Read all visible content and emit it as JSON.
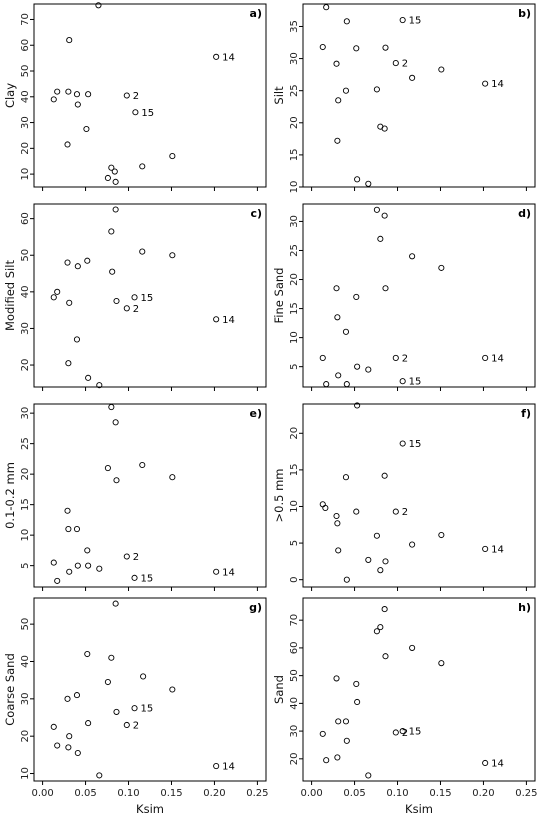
{
  "chart_data": [
    {
      "type": "scatter",
      "panel": "a)",
      "ylabel": "Clay",
      "xlabel": "",
      "ylim": [
        5,
        76
      ],
      "yticks": [
        10,
        20,
        30,
        40,
        50,
        60,
        70
      ],
      "points": [
        {
          "x": 0.013,
          "y": 39
        },
        {
          "x": 0.017,
          "y": 42
        },
        {
          "x": 0.029,
          "y": 21.5
        },
        {
          "x": 0.03,
          "y": 42
        },
        {
          "x": 0.031,
          "y": 62
        },
        {
          "x": 0.04,
          "y": 41
        },
        {
          "x": 0.041,
          "y": 37
        },
        {
          "x": 0.051,
          "y": 27.5
        },
        {
          "x": 0.053,
          "y": 41
        },
        {
          "x": 0.065,
          "y": 75.5
        },
        {
          "x": 0.076,
          "y": 8.5
        },
        {
          "x": 0.08,
          "y": 12.5
        },
        {
          "x": 0.084,
          "y": 11
        },
        {
          "x": 0.085,
          "y": 7
        },
        {
          "x": 0.098,
          "y": 40.5
        },
        {
          "x": 0.108,
          "y": 34
        },
        {
          "x": 0.116,
          "y": 13
        },
        {
          "x": 0.151,
          "y": 17
        },
        {
          "x": 0.202,
          "y": 55.5
        }
      ],
      "annotations": [
        {
          "text": "2",
          "x": 0.098,
          "y": 40.5
        },
        {
          "text": "15",
          "x": 0.108,
          "y": 34
        },
        {
          "text": "14",
          "x": 0.202,
          "y": 55.5
        }
      ]
    },
    {
      "type": "scatter",
      "panel": "b)",
      "ylabel": "Silt",
      "xlabel": "",
      "ylim": [
        10,
        38.5
      ],
      "yticks": [
        10,
        15,
        20,
        25,
        30,
        35
      ],
      "points": [
        {
          "x": 0.013,
          "y": 31.8
        },
        {
          "x": 0.017,
          "y": 38
        },
        {
          "x": 0.029,
          "y": 29.2
        },
        {
          "x": 0.03,
          "y": 17.2
        },
        {
          "x": 0.031,
          "y": 23.5
        },
        {
          "x": 0.04,
          "y": 25
        },
        {
          "x": 0.041,
          "y": 35.8
        },
        {
          "x": 0.052,
          "y": 31.6
        },
        {
          "x": 0.053,
          "y": 11.2
        },
        {
          "x": 0.066,
          "y": 10.5
        },
        {
          "x": 0.076,
          "y": 25.2
        },
        {
          "x": 0.08,
          "y": 19.4
        },
        {
          "x": 0.085,
          "y": 19.1
        },
        {
          "x": 0.086,
          "y": 31.7
        },
        {
          "x": 0.098,
          "y": 29.3
        },
        {
          "x": 0.106,
          "y": 36
        },
        {
          "x": 0.117,
          "y": 27
        },
        {
          "x": 0.151,
          "y": 28.3
        },
        {
          "x": 0.202,
          "y": 26.1
        }
      ],
      "annotations": [
        {
          "text": "2",
          "x": 0.098,
          "y": 29.3
        },
        {
          "text": "15",
          "x": 0.106,
          "y": 36
        },
        {
          "text": "14",
          "x": 0.202,
          "y": 26.1
        }
      ]
    },
    {
      "type": "scatter",
      "panel": "c)",
      "ylabel": "Modified Silt",
      "xlabel": "",
      "ylim": [
        14,
        64
      ],
      "yticks": [
        20,
        30,
        40,
        50,
        60
      ],
      "points": [
        {
          "x": 0.013,
          "y": 38.5
        },
        {
          "x": 0.017,
          "y": 40
        },
        {
          "x": 0.029,
          "y": 48
        },
        {
          "x": 0.03,
          "y": 20.5
        },
        {
          "x": 0.031,
          "y": 37
        },
        {
          "x": 0.04,
          "y": 27
        },
        {
          "x": 0.041,
          "y": 47
        },
        {
          "x": 0.052,
          "y": 48.5
        },
        {
          "x": 0.053,
          "y": 16.5
        },
        {
          "x": 0.066,
          "y": 14.5
        },
        {
          "x": 0.08,
          "y": 56.5
        },
        {
          "x": 0.081,
          "y": 45.5
        },
        {
          "x": 0.085,
          "y": 62.5
        },
        {
          "x": 0.086,
          "y": 37.5
        },
        {
          "x": 0.098,
          "y": 35.5
        },
        {
          "x": 0.107,
          "y": 38.5
        },
        {
          "x": 0.116,
          "y": 51
        },
        {
          "x": 0.151,
          "y": 50
        },
        {
          "x": 0.202,
          "y": 32.5
        }
      ],
      "annotations": [
        {
          "text": "2",
          "x": 0.098,
          "y": 35.5
        },
        {
          "text": "15",
          "x": 0.107,
          "y": 38.5
        },
        {
          "text": "14",
          "x": 0.202,
          "y": 32.5
        }
      ]
    },
    {
      "type": "scatter",
      "panel": "d)",
      "ylabel": "Fine Sand",
      "xlabel": "",
      "ylim": [
        1.5,
        33
      ],
      "yticks": [
        5,
        10,
        15,
        20,
        25,
        30
      ],
      "points": [
        {
          "x": 0.013,
          "y": 6.5
        },
        {
          "x": 0.017,
          "y": 2
        },
        {
          "x": 0.029,
          "y": 18.5
        },
        {
          "x": 0.03,
          "y": 13.5
        },
        {
          "x": 0.031,
          "y": 3.5
        },
        {
          "x": 0.04,
          "y": 11
        },
        {
          "x": 0.041,
          "y": 2
        },
        {
          "x": 0.052,
          "y": 17
        },
        {
          "x": 0.053,
          "y": 5
        },
        {
          "x": 0.066,
          "y": 4.5
        },
        {
          "x": 0.076,
          "y": 32
        },
        {
          "x": 0.08,
          "y": 27
        },
        {
          "x": 0.085,
          "y": 31
        },
        {
          "x": 0.086,
          "y": 18.5
        },
        {
          "x": 0.098,
          "y": 6.5
        },
        {
          "x": 0.106,
          "y": 2.5
        },
        {
          "x": 0.117,
          "y": 24
        },
        {
          "x": 0.151,
          "y": 22
        },
        {
          "x": 0.202,
          "y": 6.5
        }
      ],
      "annotations": [
        {
          "text": "2",
          "x": 0.098,
          "y": 6.5
        },
        {
          "text": "15",
          "x": 0.106,
          "y": 2.5
        },
        {
          "text": "14",
          "x": 0.202,
          "y": 6.5
        }
      ]
    },
    {
      "type": "scatter",
      "panel": "e)",
      "ylabel": "0.1-0.2 mm",
      "xlabel": "",
      "ylim": [
        1.5,
        31.5
      ],
      "yticks": [
        5,
        10,
        15,
        20,
        25,
        30
      ],
      "points": [
        {
          "x": 0.013,
          "y": 5.5
        },
        {
          "x": 0.017,
          "y": 2.5
        },
        {
          "x": 0.029,
          "y": 14
        },
        {
          "x": 0.03,
          "y": 11
        },
        {
          "x": 0.031,
          "y": 4
        },
        {
          "x": 0.04,
          "y": 11
        },
        {
          "x": 0.041,
          "y": 5
        },
        {
          "x": 0.052,
          "y": 7.5
        },
        {
          "x": 0.053,
          "y": 5
        },
        {
          "x": 0.066,
          "y": 4.5
        },
        {
          "x": 0.076,
          "y": 21
        },
        {
          "x": 0.08,
          "y": 31
        },
        {
          "x": 0.085,
          "y": 28.5
        },
        {
          "x": 0.086,
          "y": 19
        },
        {
          "x": 0.098,
          "y": 6.5
        },
        {
          "x": 0.107,
          "y": 3
        },
        {
          "x": 0.116,
          "y": 21.5
        },
        {
          "x": 0.151,
          "y": 19.5
        },
        {
          "x": 0.202,
          "y": 4
        }
      ],
      "annotations": [
        {
          "text": "2",
          "x": 0.098,
          "y": 6.5
        },
        {
          "text": "15",
          "x": 0.107,
          "y": 3
        },
        {
          "text": "14",
          "x": 0.202,
          "y": 4
        }
      ]
    },
    {
      "type": "scatter",
      "panel": "f)",
      "ylabel": ">0.5 mm",
      "xlabel": "",
      "ylim": [
        -1,
        24
      ],
      "yticks": [
        0,
        5,
        10,
        15,
        20
      ],
      "points": [
        {
          "x": 0.013,
          "y": 10.3
        },
        {
          "x": 0.016,
          "y": 9.8
        },
        {
          "x": 0.029,
          "y": 8.7
        },
        {
          "x": 0.03,
          "y": 7.7
        },
        {
          "x": 0.031,
          "y": 4
        },
        {
          "x": 0.04,
          "y": 14
        },
        {
          "x": 0.041,
          "y": 0
        },
        {
          "x": 0.052,
          "y": 9.3
        },
        {
          "x": 0.053,
          "y": 23.8
        },
        {
          "x": 0.066,
          "y": 2.7
        },
        {
          "x": 0.076,
          "y": 6
        },
        {
          "x": 0.08,
          "y": 1.3
        },
        {
          "x": 0.085,
          "y": 14.2
        },
        {
          "x": 0.086,
          "y": 2.5
        },
        {
          "x": 0.098,
          "y": 9.3
        },
        {
          "x": 0.106,
          "y": 18.6
        },
        {
          "x": 0.117,
          "y": 4.8
        },
        {
          "x": 0.151,
          "y": 6.1
        },
        {
          "x": 0.202,
          "y": 4.2
        }
      ],
      "annotations": [
        {
          "text": "2",
          "x": 0.098,
          "y": 9.3
        },
        {
          "text": "15",
          "x": 0.106,
          "y": 18.6
        },
        {
          "text": "14",
          "x": 0.202,
          "y": 4.2
        }
      ]
    },
    {
      "type": "scatter",
      "panel": "g)",
      "ylabel": "Coarse Sand",
      "xlabel": "Ksim",
      "ylim": [
        8,
        57
      ],
      "yticks": [
        10,
        20,
        30,
        40,
        50
      ],
      "points": [
        {
          "x": 0.013,
          "y": 22.5
        },
        {
          "x": 0.017,
          "y": 17.5
        },
        {
          "x": 0.029,
          "y": 30
        },
        {
          "x": 0.03,
          "y": 17
        },
        {
          "x": 0.031,
          "y": 20
        },
        {
          "x": 0.04,
          "y": 31
        },
        {
          "x": 0.041,
          "y": 15.5
        },
        {
          "x": 0.052,
          "y": 42
        },
        {
          "x": 0.053,
          "y": 23.5
        },
        {
          "x": 0.066,
          "y": 9.5
        },
        {
          "x": 0.076,
          "y": 34.5
        },
        {
          "x": 0.08,
          "y": 41
        },
        {
          "x": 0.085,
          "y": 55.5
        },
        {
          "x": 0.086,
          "y": 26.5
        },
        {
          "x": 0.098,
          "y": 23
        },
        {
          "x": 0.107,
          "y": 27.5
        },
        {
          "x": 0.117,
          "y": 36
        },
        {
          "x": 0.151,
          "y": 32.5
        },
        {
          "x": 0.202,
          "y": 12
        }
      ],
      "annotations": [
        {
          "text": "2",
          "x": 0.098,
          "y": 23
        },
        {
          "text": "15",
          "x": 0.107,
          "y": 27.5
        },
        {
          "text": "14",
          "x": 0.202,
          "y": 12
        }
      ]
    },
    {
      "type": "scatter",
      "panel": "h)",
      "ylabel": "Sand",
      "xlabel": "Ksim",
      "ylim": [
        12,
        78
      ],
      "yticks": [
        20,
        30,
        40,
        50,
        60,
        70
      ],
      "points": [
        {
          "x": 0.013,
          "y": 29
        },
        {
          "x": 0.017,
          "y": 19.5
        },
        {
          "x": 0.029,
          "y": 49
        },
        {
          "x": 0.03,
          "y": 20.5
        },
        {
          "x": 0.031,
          "y": 33.5
        },
        {
          "x": 0.04,
          "y": 33.5
        },
        {
          "x": 0.041,
          "y": 26.5
        },
        {
          "x": 0.052,
          "y": 47
        },
        {
          "x": 0.053,
          "y": 40.5
        },
        {
          "x": 0.066,
          "y": 14
        },
        {
          "x": 0.076,
          "y": 66
        },
        {
          "x": 0.08,
          "y": 67.5
        },
        {
          "x": 0.085,
          "y": 74
        },
        {
          "x": 0.086,
          "y": 57
        },
        {
          "x": 0.098,
          "y": 29.5
        },
        {
          "x": 0.106,
          "y": 30
        },
        {
          "x": 0.117,
          "y": 60
        },
        {
          "x": 0.151,
          "y": 54.5
        },
        {
          "x": 0.202,
          "y": 18.5
        }
      ],
      "annotations": [
        {
          "text": "2",
          "x": 0.098,
          "y": 29.5
        },
        {
          "text": "15",
          "x": 0.106,
          "y": 30
        },
        {
          "text": "14",
          "x": 0.202,
          "y": 18.5
        }
      ]
    }
  ],
  "x_axis": {
    "xlim": [
      -0.01,
      0.26
    ],
    "ticks": [
      "0.00",
      "0.05",
      "0.10",
      "0.15",
      "0.20",
      "0.25"
    ]
  }
}
